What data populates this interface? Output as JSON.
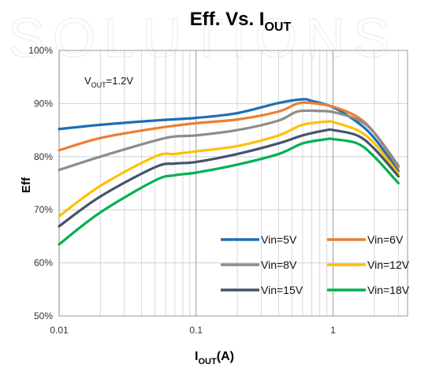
{
  "watermark": "SOLUTIONS",
  "chart_data": {
    "type": "line",
    "title": {
      "main": "Eff. Vs. I",
      "sub": "OUT"
    },
    "xlabel": {
      "main": "I",
      "sub": "OUT",
      "suffix": "(A)"
    },
    "ylabel": "Eff",
    "xscale": "log",
    "xlim": [
      0.01,
      3.5
    ],
    "ylim": [
      50,
      100
    ],
    "xticks": [
      {
        "value": 0.01,
        "label": "0.01"
      },
      {
        "value": 0.1,
        "label": "0.1"
      },
      {
        "value": 1,
        "label": "1"
      }
    ],
    "yticks": [
      {
        "value": 50,
        "label": "50%"
      },
      {
        "value": 60,
        "label": "60%"
      },
      {
        "value": 70,
        "label": "70%"
      },
      {
        "value": 80,
        "label": "80%"
      },
      {
        "value": 90,
        "label": "90%"
      },
      {
        "value": 100,
        "label": "100%"
      }
    ],
    "grid": true,
    "annotation": {
      "main": "V",
      "sub": "OUT",
      "suffix": "=1.2V"
    },
    "legend_position": "bottom-right",
    "series": [
      {
        "name": "Vin=5V",
        "color": "#1f6eb5",
        "x": [
          0.01,
          0.02,
          0.05,
          0.1,
          0.2,
          0.4,
          0.6,
          0.7,
          1.0,
          1.5,
          2.0,
          3.0
        ],
        "y": [
          85.2,
          86.0,
          86.8,
          87.3,
          88.2,
          90.1,
          90.8,
          90.5,
          89.3,
          86.5,
          83.5,
          77.3
        ]
      },
      {
        "name": "Vin=6V",
        "color": "#ed7d31",
        "x": [
          0.01,
          0.02,
          0.05,
          0.1,
          0.2,
          0.4,
          0.55,
          0.7,
          1.0,
          1.5,
          2.0,
          3.0
        ],
        "y": [
          81.2,
          83.5,
          85.3,
          86.3,
          87.0,
          88.5,
          90.0,
          90.1,
          89.4,
          87.5,
          84.5,
          78.0
        ]
      },
      {
        "name": "Vin=8V",
        "color": "#8c8c8c",
        "x": [
          0.01,
          0.02,
          0.05,
          0.07,
          0.1,
          0.2,
          0.4,
          0.55,
          0.8,
          1.0,
          1.5,
          2.0,
          3.0
        ],
        "y": [
          77.5,
          80.0,
          83.0,
          83.8,
          84.0,
          85.0,
          86.8,
          88.5,
          88.6,
          88.4,
          87.0,
          84.5,
          78.3
        ]
      },
      {
        "name": "Vin=12V",
        "color": "#ffc000",
        "x": [
          0.01,
          0.02,
          0.05,
          0.07,
          0.1,
          0.2,
          0.4,
          0.6,
          0.9,
          1.0,
          1.5,
          2.0,
          3.0
        ],
        "y": [
          68.8,
          74.5,
          80.0,
          80.5,
          81.0,
          82.0,
          84.0,
          86.0,
          86.6,
          86.5,
          85.0,
          82.5,
          76.8
        ]
      },
      {
        "name": "Vin=15V",
        "color": "#44546a",
        "x": [
          0.01,
          0.02,
          0.05,
          0.07,
          0.1,
          0.2,
          0.4,
          0.6,
          0.9,
          1.0,
          1.5,
          2.0,
          3.0
        ],
        "y": [
          66.9,
          72.5,
          78.0,
          78.7,
          79.0,
          80.5,
          82.5,
          84.0,
          85.0,
          85.0,
          84.0,
          81.5,
          76.3
        ]
      },
      {
        "name": "Vin=18V",
        "color": "#00b050",
        "x": [
          0.01,
          0.02,
          0.05,
          0.07,
          0.1,
          0.2,
          0.4,
          0.6,
          0.9,
          1.0,
          1.5,
          2.0,
          3.0
        ],
        "y": [
          63.5,
          69.5,
          75.5,
          76.5,
          77.0,
          78.5,
          80.5,
          82.5,
          83.3,
          83.3,
          82.5,
          80.0,
          75.0
        ]
      }
    ]
  }
}
